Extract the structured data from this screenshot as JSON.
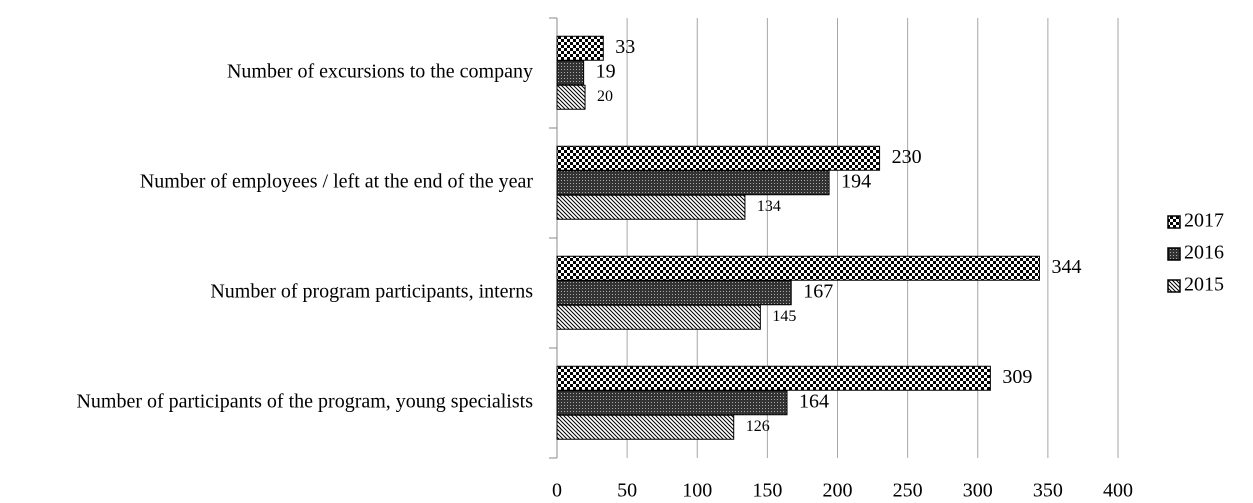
{
  "chart_data": {
    "type": "barh",
    "categories": [
      "Number of excursions to the company",
      "Number of employees / left at the end of the year",
      "Number of program participants, interns",
      "Number of participants of the program, young specialists"
    ],
    "series": [
      {
        "name": "2017",
        "color": "#000000",
        "pattern": "checker",
        "values": [
          33,
          230,
          344,
          309
        ]
      },
      {
        "name": "2016",
        "color": "#000000",
        "pattern": "dense",
        "values": [
          19,
          194,
          167,
          164
        ]
      },
      {
        "name": "2015",
        "color": "#000000",
        "pattern": "hatch",
        "values": [
          20,
          134,
          145,
          126
        ]
      }
    ],
    "xlim": [
      0,
      400
    ],
    "xticks": [
      0,
      50,
      100,
      150,
      200,
      250,
      300,
      350,
      400
    ],
    "grid": true,
    "legend": "right"
  }
}
